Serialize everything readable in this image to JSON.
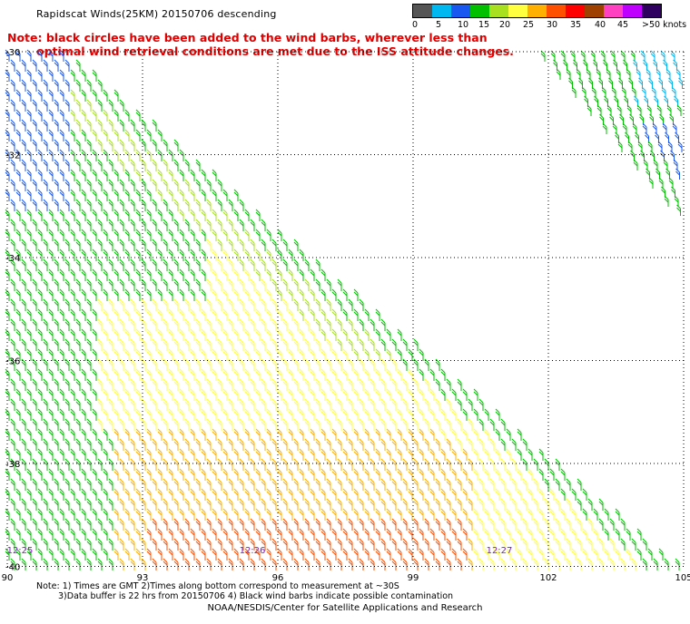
{
  "title": "Rapidscat Winds(25KM) 20150706 descending",
  "note": {
    "line1": "Note: black circles have been added to the wind barbs, wherever less than",
    "line2": "optimal wind retrieval conditions are met due to the ISS attitude changes."
  },
  "legend": {
    "unit": "knots",
    "colors": [
      "#555555",
      "#00b8f0",
      "#1858f0",
      "#00c000",
      "#a8e020",
      "#ffff40",
      "#ffb000",
      "#ff5000",
      "#ff0000",
      "#a04000",
      "#ff40c0",
      "#c000ff",
      "#300060"
    ],
    "labels": [
      "0",
      "5",
      "10",
      "15",
      "20",
      "25",
      "30",
      "35",
      "40",
      "45",
      ">50 knots"
    ]
  },
  "axes": {
    "lat_labels": [
      "-30",
      "-32",
      "-34",
      "-36",
      "-38",
      "-40"
    ],
    "lon_labels": [
      "90",
      "93",
      "96",
      "99",
      "102",
      "105"
    ]
  },
  "pass_times": [
    "12:25",
    "12:26",
    "12:27"
  ],
  "footnotes": {
    "line1": "Note: 1) Times are GMT 2)Times along bottom correspond to measurement at ~30S",
    "line2": "3)Data buffer is 22 hrs from 20150706 4) Black wind barbs indicate possible contamination"
  },
  "credit": "NOAA/NESDIS/Center for Satellite Applications and Research"
}
